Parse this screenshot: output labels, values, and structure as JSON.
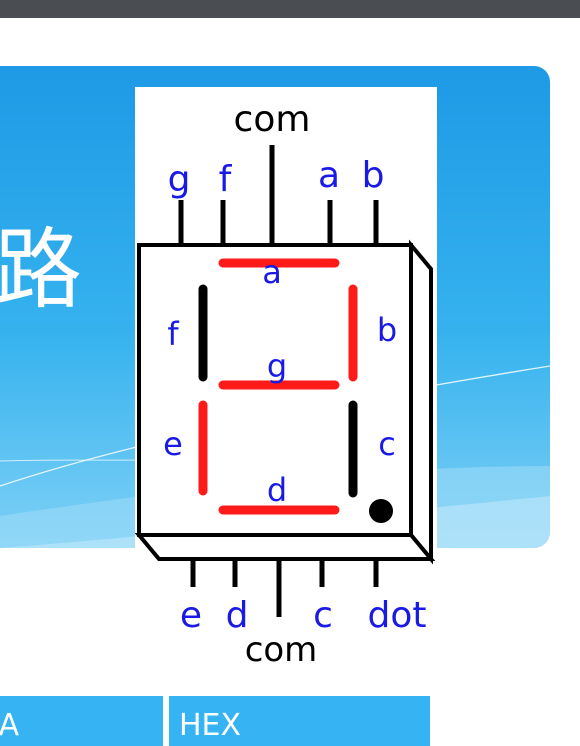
{
  "slide": {
    "title_fragment": "路"
  },
  "diagram": {
    "top_com": "com",
    "bottom_com": "com",
    "top_pins": [
      "g",
      "f",
      "a",
      "b"
    ],
    "bottom_pins": [
      "e",
      "d",
      "c",
      "dot"
    ],
    "segment_labels": {
      "a": "a",
      "b": "b",
      "c": "c",
      "d": "d",
      "e": "e",
      "f": "f",
      "g": "g"
    },
    "lit_color": "#ff1a1a",
    "unlit_color": "#000000",
    "label_color": "#1a1ae6"
  },
  "table": {
    "headers": [
      "BA",
      "HEX"
    ]
  }
}
